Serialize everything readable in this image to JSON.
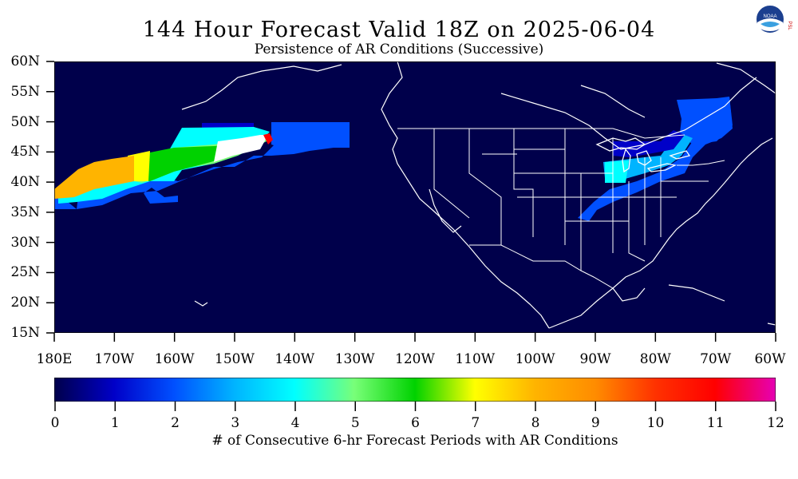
{
  "title": "144 Hour Forecast Valid 18Z on 2025-06-04",
  "subtitle": "Persistence of AR Conditions (Successive)",
  "logo": {
    "icon": "noaa-logo-icon",
    "text": "NOAA",
    "side_text": "PSL"
  },
  "map": {
    "background": "#00004b",
    "lat_labels": [
      "60N",
      "55N",
      "50N",
      "45N",
      "40N",
      "35N",
      "30N",
      "25N",
      "20N",
      "15N"
    ],
    "lon_labels": [
      "180E",
      "170W",
      "160W",
      "150W",
      "140W",
      "130W",
      "120W",
      "110W",
      "100W",
      "90W",
      "80W",
      "70W",
      "60W"
    ],
    "lat_range": [
      15,
      60
    ],
    "lon_range": [
      -180,
      -60
    ]
  },
  "colorbar": {
    "ticks": [
      "0",
      "1",
      "2",
      "3",
      "4",
      "5",
      "6",
      "7",
      "8",
      "9",
      "10",
      "11",
      "12"
    ],
    "label": "# of Consecutive 6-hr Forecast Periods with AR Conditions",
    "colors": [
      "#00004b",
      "#0000c8",
      "#0050ff",
      "#00b4ff",
      "#00ffff",
      "#78ff78",
      "#00d200",
      "#ffff00",
      "#ffb400",
      "#ff8c00",
      "#ff0000",
      "#e60082",
      "#ff46ff"
    ]
  }
}
